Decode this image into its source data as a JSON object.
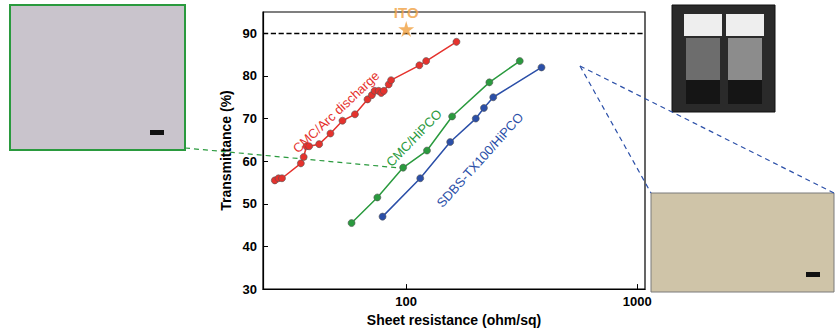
{
  "chart_data": {
    "type": "line",
    "x_label": "Sheet resistance (ohm/sq)",
    "y_label": "Transmittance (%)",
    "log": "x",
    "grid": false,
    "xlim": [
      24,
      1080
    ],
    "xticks": [
      100,
      1000
    ],
    "ylim": [
      30,
      95
    ],
    "yticks": [
      30,
      40,
      50,
      60,
      70,
      80,
      90
    ],
    "hline": {
      "y": 90,
      "line_style": "dashed"
    },
    "series": [
      {
        "name": "CMC/Arc discharge",
        "color": "#e5322d",
        "marker": "circle",
        "line_style": "solid",
        "x": [
          27,
          28,
          29,
          35,
          36,
          37,
          38,
          42,
          47,
          53,
          60,
          68,
          71,
          73,
          76,
          78,
          80,
          84,
          86,
          114,
          122,
          165
        ],
        "values": [
          55.5,
          56,
          56,
          59.5,
          61,
          63.5,
          63.5,
          64,
          66.5,
          69.5,
          71,
          74.5,
          75.5,
          76.5,
          76.5,
          76,
          76.5,
          78,
          79,
          82.5,
          83.5,
          88
        ]
      },
      {
        "name": "CMC/HiPCO",
        "color": "#2a9a3e",
        "marker": "circle",
        "line_style": "solid",
        "x": [
          58,
          75,
          97,
          123,
          158,
          229,
          310
        ],
        "values": [
          45.5,
          51.5,
          58.5,
          62.5,
          70.5,
          78.5,
          83.5
        ]
      },
      {
        "name": "SDBS-TX100/HiPCO",
        "color": "#2b4fa8",
        "marker": "circle",
        "line_style": "solid",
        "x": [
          79,
          115,
          155,
          200,
          217,
          238,
          385
        ],
        "values": [
          47,
          56,
          64.5,
          70,
          72.5,
          75,
          82
        ]
      },
      {
        "name": "ITO",
        "type": "scatter",
        "color": "#f0a040",
        "marker": "star",
        "x": [
          100
        ],
        "values": [
          91
        ]
      }
    ]
  }
}
